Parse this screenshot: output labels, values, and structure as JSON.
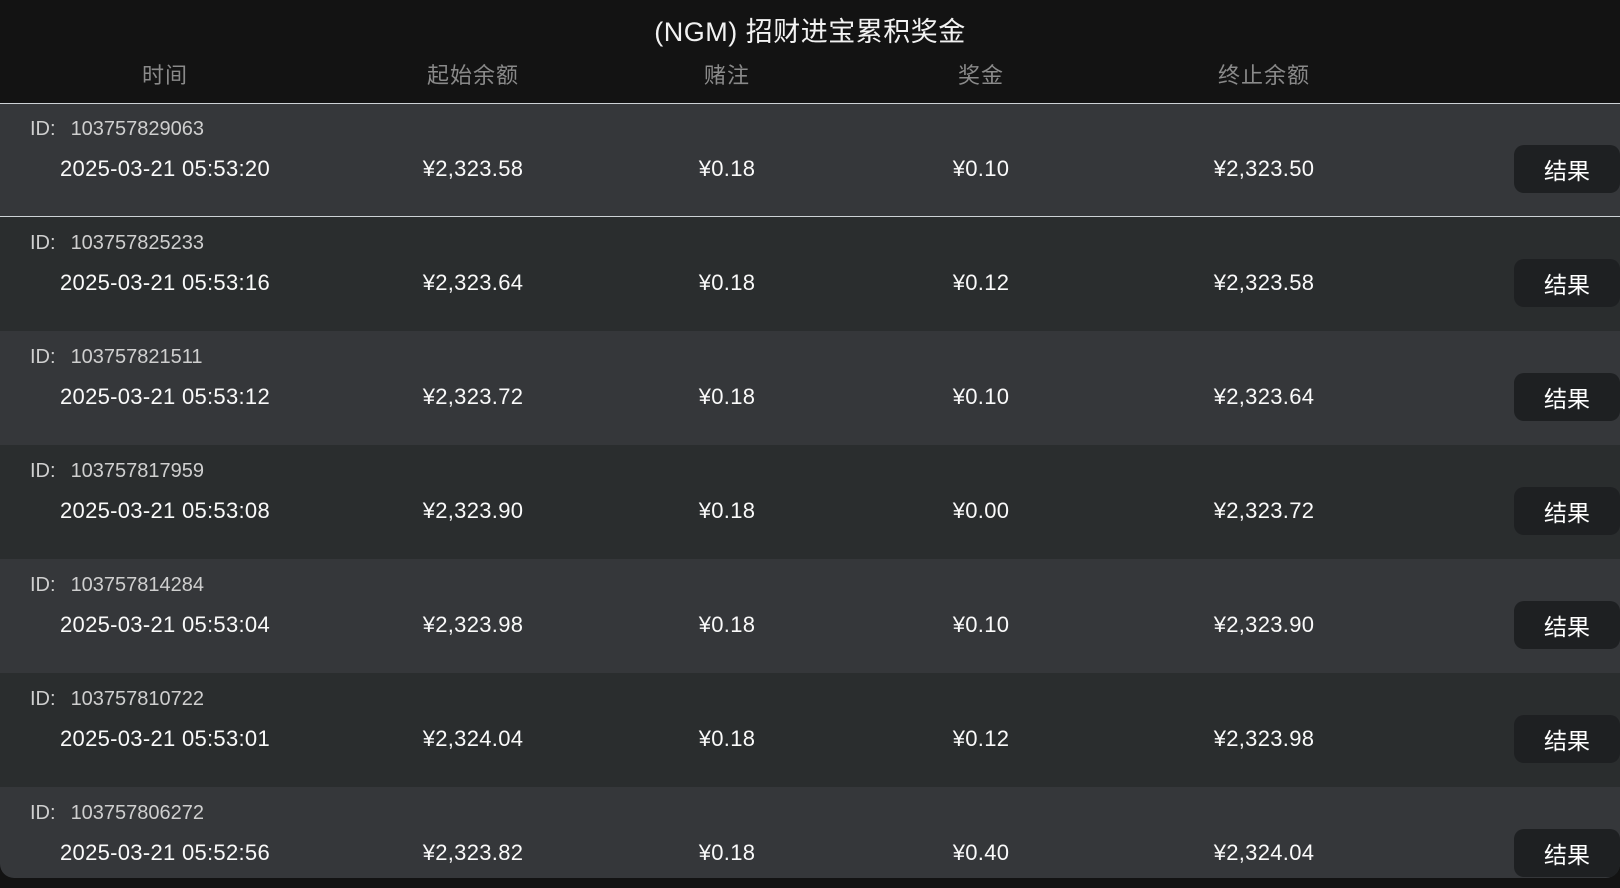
{
  "header": {
    "title": "(NGM) 招财进宝累积奖金",
    "columns": [
      "时间",
      "起始余额",
      "赌注",
      "奖金",
      "终止余额"
    ]
  },
  "table": {
    "id_label": "ID:",
    "rows": [
      {
        "id": "103757829063",
        "time": "2025-03-21 05:53:20",
        "start_balance": "¥2,323.58",
        "bet": "¥0.18",
        "prize": "¥0.10",
        "end_balance": "¥2,323.50",
        "action": "结果"
      },
      {
        "id": "103757825233",
        "time": "2025-03-21 05:53:16",
        "start_balance": "¥2,323.64",
        "bet": "¥0.18",
        "prize": "¥0.12",
        "end_balance": "¥2,323.58",
        "action": "结果"
      },
      {
        "id": "103757821511",
        "time": "2025-03-21 05:53:12",
        "start_balance": "¥2,323.72",
        "bet": "¥0.18",
        "prize": "¥0.10",
        "end_balance": "¥2,323.64",
        "action": "结果"
      },
      {
        "id": "103757817959",
        "time": "2025-03-21 05:53:08",
        "start_balance": "¥2,323.90",
        "bet": "¥0.18",
        "prize": "¥0.00",
        "end_balance": "¥2,323.72",
        "action": "结果"
      },
      {
        "id": "103757814284",
        "time": "2025-03-21 05:53:04",
        "start_balance": "¥2,323.98",
        "bet": "¥0.18",
        "prize": "¥0.10",
        "end_balance": "¥2,323.90",
        "action": "结果"
      },
      {
        "id": "103757810722",
        "time": "2025-03-21 05:53:01",
        "start_balance": "¥2,324.04",
        "bet": "¥0.18",
        "prize": "¥0.12",
        "end_balance": "¥2,323.98",
        "action": "结果"
      },
      {
        "id": "103757806272",
        "time": "2025-03-21 05:52:56",
        "start_balance": "¥2,323.82",
        "bet": "¥0.18",
        "prize": "¥0.40",
        "end_balance": "¥2,324.04",
        "action": "结果"
      }
    ]
  },
  "colors": {
    "page_bg": "#131313",
    "row_odd": "#35373a",
    "row_even": "#2a2d2e",
    "first_row_border": "#cdd2d6",
    "button_bg": "#1e2022",
    "header_text": "#8a8a8a"
  }
}
